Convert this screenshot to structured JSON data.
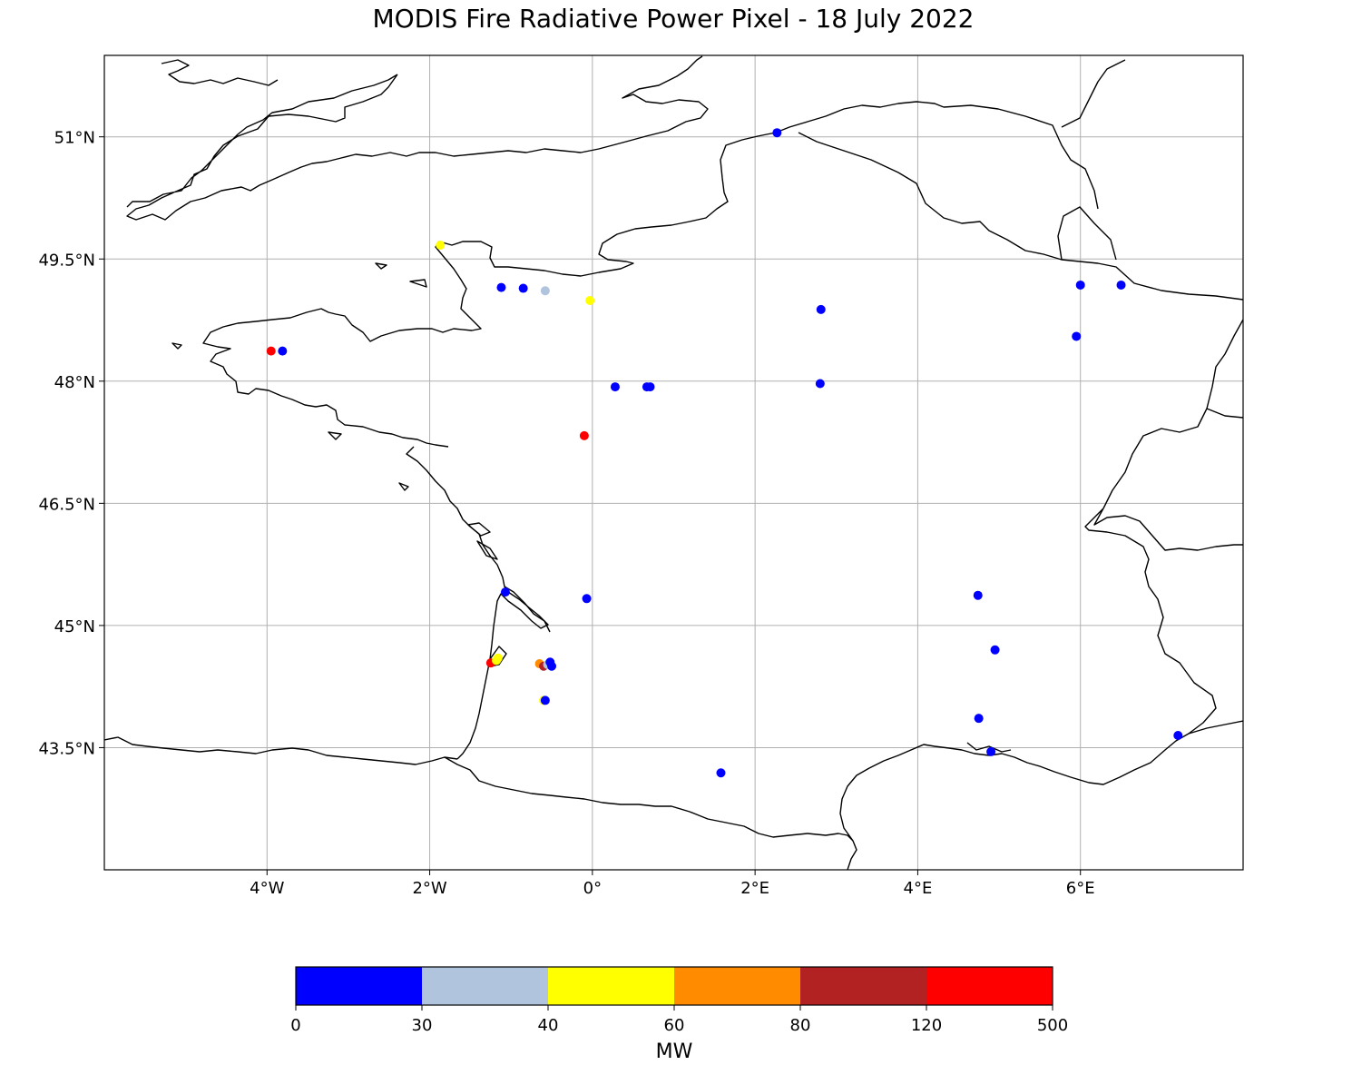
{
  "title": "MODIS Fire Radiative Power Pixel - 18 July 2022",
  "chart_data": {
    "type": "scatter",
    "title": "MODIS Fire Radiative Power Pixel - 18 July 2022",
    "xlim": [
      -6,
      8
    ],
    "ylim": [
      42,
      52
    ],
    "x_ticks": [
      {
        "value": -4,
        "label": "4°W"
      },
      {
        "value": -2,
        "label": "2°W"
      },
      {
        "value": 0,
        "label": "0°"
      },
      {
        "value": 2,
        "label": "2°E"
      },
      {
        "value": 4,
        "label": "4°E"
      },
      {
        "value": 6,
        "label": "6°E"
      }
    ],
    "y_ticks": [
      {
        "value": 43.5,
        "label": "43.5°N"
      },
      {
        "value": 45,
        "label": "45°N"
      },
      {
        "value": 46.5,
        "label": "46.5°N"
      },
      {
        "value": 48,
        "label": "48°N"
      },
      {
        "value": 49.5,
        "label": "49.5°N"
      },
      {
        "value": 51,
        "label": "51°N"
      }
    ],
    "grid": true,
    "colorbar": {
      "label": "MW",
      "boundaries": [
        "0",
        "30",
        "40",
        "60",
        "80",
        "120",
        "500"
      ],
      "colors": [
        "#0000ff",
        "#b0c4de",
        "#ffff00",
        "#ff8c00",
        "#b22222",
        "#ff0000"
      ]
    },
    "points": [
      {
        "lon": 2.27,
        "lat": 51.05,
        "frp": 10
      },
      {
        "lon": -1.87,
        "lat": 49.67,
        "frp": 50
      },
      {
        "lon": -1.12,
        "lat": 49.15,
        "frp": 10
      },
      {
        "lon": -0.85,
        "lat": 49.14,
        "frp": 10
      },
      {
        "lon": -0.58,
        "lat": 49.11,
        "frp": 35
      },
      {
        "lon": -0.03,
        "lat": 48.99,
        "frp": 50
      },
      {
        "lon": 2.81,
        "lat": 48.88,
        "frp": 10
      },
      {
        "lon": 6.0,
        "lat": 49.18,
        "frp": 10
      },
      {
        "lon": 6.5,
        "lat": 49.18,
        "frp": 10
      },
      {
        "lon": 5.95,
        "lat": 48.55,
        "frp": 10
      },
      {
        "lon": -3.95,
        "lat": 48.37,
        "frp": 200
      },
      {
        "lon": -3.81,
        "lat": 48.37,
        "frp": 10
      },
      {
        "lon": 0.28,
        "lat": 47.93,
        "frp": 10
      },
      {
        "lon": 0.67,
        "lat": 47.93,
        "frp": 10
      },
      {
        "lon": 0.71,
        "lat": 47.93,
        "frp": 10
      },
      {
        "lon": 2.8,
        "lat": 47.97,
        "frp": 10
      },
      {
        "lon": -0.1,
        "lat": 47.33,
        "frp": 200
      },
      {
        "lon": -1.07,
        "lat": 45.41,
        "frp": 10
      },
      {
        "lon": -0.07,
        "lat": 45.33,
        "frp": 10
      },
      {
        "lon": 4.74,
        "lat": 45.37,
        "frp": 10
      },
      {
        "lon": 4.95,
        "lat": 44.7,
        "frp": 10
      },
      {
        "lon": -1.25,
        "lat": 44.54,
        "frp": 200
      },
      {
        "lon": -1.18,
        "lat": 44.57,
        "frp": 50
      },
      {
        "lon": -1.16,
        "lat": 44.6,
        "frp": 50
      },
      {
        "lon": -0.65,
        "lat": 44.53,
        "frp": 70
      },
      {
        "lon": -0.6,
        "lat": 44.5,
        "frp": 100
      },
      {
        "lon": -0.55,
        "lat": 44.52,
        "frp": 35
      },
      {
        "lon": -0.52,
        "lat": 44.55,
        "frp": 10
      },
      {
        "lon": -0.5,
        "lat": 44.5,
        "frp": 10
      },
      {
        "lon": -0.6,
        "lat": 44.08,
        "frp": 50
      },
      {
        "lon": -0.58,
        "lat": 44.08,
        "frp": 10
      },
      {
        "lon": 4.75,
        "lat": 43.86,
        "frp": 10
      },
      {
        "lon": 4.9,
        "lat": 43.45,
        "frp": 10
      },
      {
        "lon": 7.2,
        "lat": 43.65,
        "frp": 10
      },
      {
        "lon": 1.58,
        "lat": 43.19,
        "frp": 10
      }
    ]
  }
}
